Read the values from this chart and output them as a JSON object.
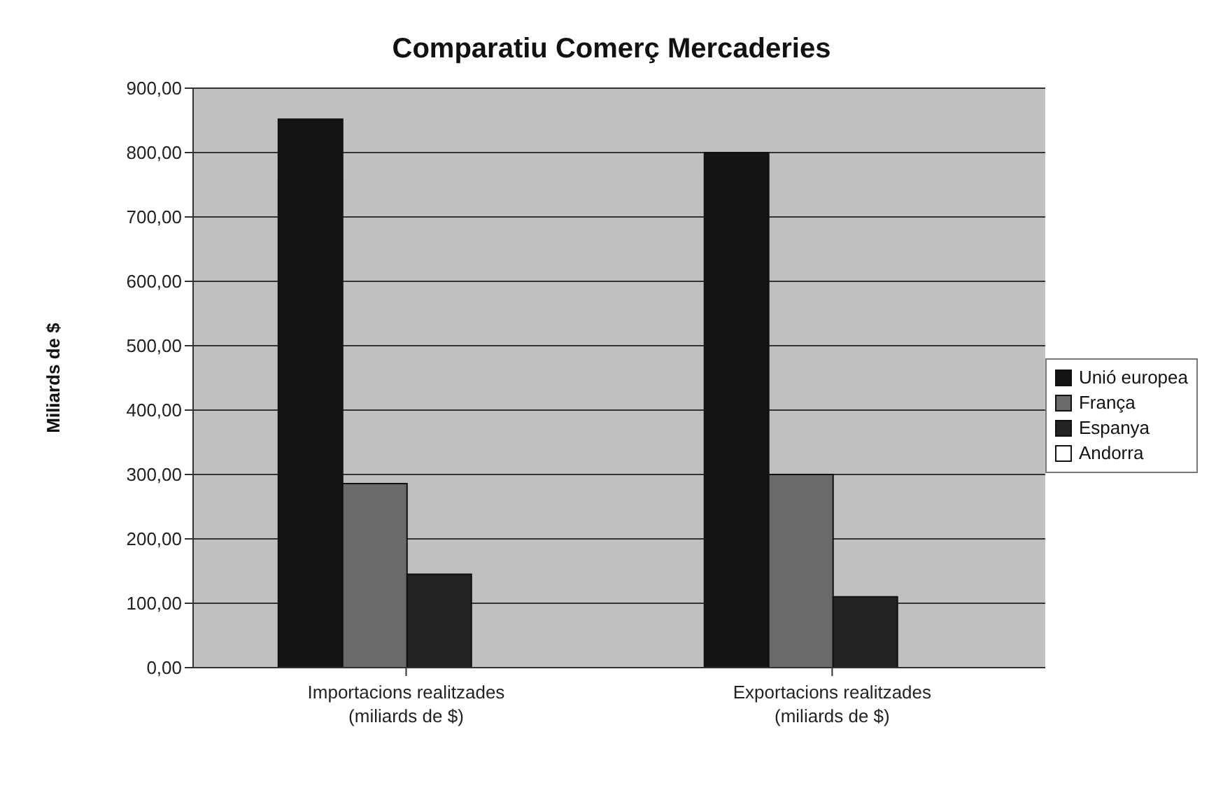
{
  "chart_data": {
    "type": "bar",
    "title": "Comparatiu Comerç Mercaderies",
    "ylabel": "Miliards de $",
    "categories": [
      "Importacions realitzades (miliards de $)",
      "Exportacions realitzades (miliards de $)"
    ],
    "series": [
      {
        "name": "Unió europea",
        "color": "#141414",
        "values": [
          852,
          800
        ]
      },
      {
        "name": "França",
        "color": "#6a6a6a",
        "values": [
          286,
          300
        ]
      },
      {
        "name": "Espanya",
        "color": "#222222",
        "values": [
          145,
          110
        ]
      },
      {
        "name": "Andorra",
        "color": "#ffffff",
        "values": [
          0,
          0
        ]
      }
    ],
    "ylim": [
      0,
      900
    ],
    "yticks": [
      {
        "value": 0,
        "label": "0,00"
      },
      {
        "value": 100,
        "label": "100,00"
      },
      {
        "value": 200,
        "label": "200,00"
      },
      {
        "value": 300,
        "label": "300,00"
      },
      {
        "value": 400,
        "label": "400,00"
      },
      {
        "value": 500,
        "label": "500,00"
      },
      {
        "value": 600,
        "label": "600,00"
      },
      {
        "value": 700,
        "label": "700,00"
      },
      {
        "value": 800,
        "label": "800,00"
      },
      {
        "value": 900,
        "label": "900,00"
      }
    ],
    "grid": "y",
    "legend": "right"
  }
}
